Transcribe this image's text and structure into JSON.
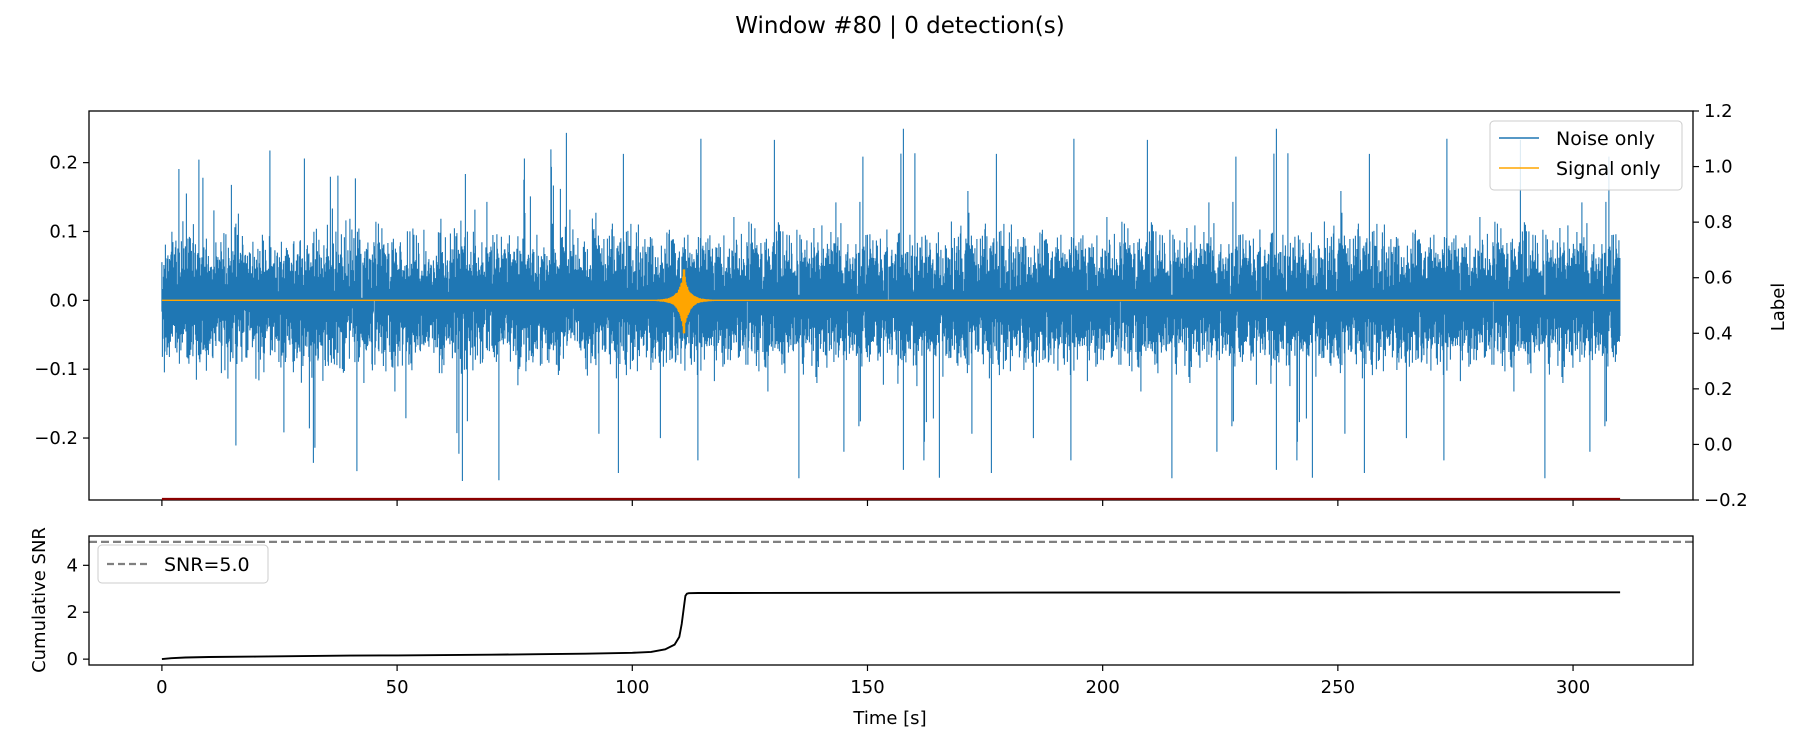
{
  "figure": {
    "title": "Window #80 | 0 detection(s)"
  },
  "chart_data": [
    {
      "type": "line",
      "panel": "waveform",
      "title": "",
      "xlabel": "",
      "ylabel": "",
      "ylabel_right": "Label",
      "xlim": [
        -15.5,
        325.5
      ],
      "ylim": [
        -0.29,
        0.275
      ],
      "ylim_right": [
        -0.2,
        1.2
      ],
      "yticks": [
        -0.2,
        -0.1,
        0.0,
        0.1,
        0.2
      ],
      "yticks_right": [
        -0.2,
        0.0,
        0.2,
        0.4,
        0.6,
        0.8,
        1.0,
        1.2
      ],
      "xticks": [
        0,
        50,
        100,
        150,
        200,
        250,
        300
      ],
      "legend_position": "upper right",
      "grid": false,
      "series": [
        {
          "name": "Noise only",
          "color": "#1f77b4",
          "description": "broadband noise over 0–310 s",
          "x_range": [
            0,
            310
          ],
          "typical_amplitude": 0.095,
          "max": 0.25,
          "min": -0.265
        },
        {
          "name": "Signal only",
          "color": "#ffa500",
          "description": "flat zero line with a short burst",
          "x_range": [
            0,
            310
          ],
          "burst_center": 111,
          "burst_peak": 0.045,
          "burst_trough": -0.048
        },
        {
          "name": "",
          "color": "#8b0000",
          "axis": "right",
          "description": "label trace",
          "x": [
            0,
            310
          ],
          "y": [
            -0.2,
            -0.2
          ]
        }
      ]
    },
    {
      "type": "line",
      "panel": "cumulative-snr",
      "title": "",
      "xlabel": "Time [s]",
      "ylabel": "Cumulative SNR",
      "xlim": [
        -15.5,
        325.5
      ],
      "ylim": [
        -0.25,
        5.25
      ],
      "yticks": [
        0,
        2,
        4
      ],
      "xticks": [
        0,
        50,
        100,
        150,
        200,
        250,
        300
      ],
      "xticklabels": [
        "0",
        "50",
        "100",
        "150",
        "200",
        "250",
        "300"
      ],
      "legend_position": "upper left",
      "grid": false,
      "threshold": {
        "name": "SNR=5.0",
        "value": 5.0,
        "color": "#808080",
        "style": "dashed"
      },
      "series": [
        {
          "name": "",
          "color": "#000000",
          "x": [
            0,
            2,
            5,
            10,
            20,
            30,
            40,
            50,
            60,
            70,
            80,
            90,
            100,
            104,
            107,
            109,
            110,
            110.5,
            111,
            111.3,
            111.6,
            112,
            114,
            120,
            150,
            200,
            250,
            310
          ],
          "y": [
            0.0,
            0.04,
            0.07,
            0.09,
            0.11,
            0.13,
            0.15,
            0.16,
            0.17,
            0.19,
            0.21,
            0.23,
            0.27,
            0.31,
            0.42,
            0.62,
            0.95,
            1.5,
            2.25,
            2.7,
            2.79,
            2.81,
            2.82,
            2.82,
            2.83,
            2.84,
            2.84,
            2.85
          ]
        }
      ]
    }
  ]
}
